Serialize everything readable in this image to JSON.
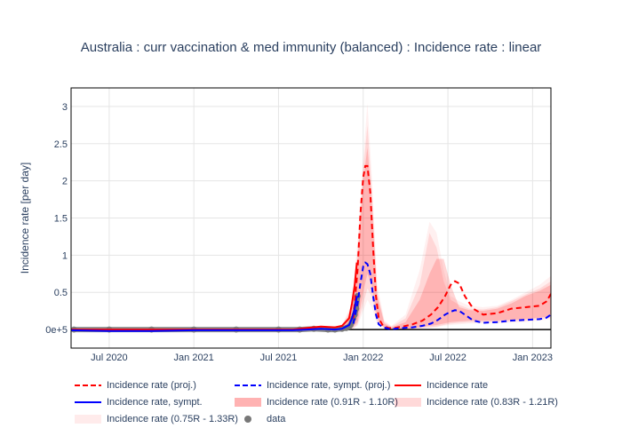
{
  "chart_data": {
    "type": "line",
    "title": "Australia : curr vaccination & med immunity (balanced) : Incidence rate : linear",
    "xlabel": "",
    "ylabel": "Incidence rate [per day]",
    "x_unit": "months since 2020-01-01",
    "xlim": [
      3.3,
      37.3
    ],
    "ylim": [
      -0.25,
      3.25
    ],
    "x_ticks": [
      {
        "label": "Jul 2020",
        "x": 6
      },
      {
        "label": "Jan 2021",
        "x": 12
      },
      {
        "label": "Jul 2021",
        "x": 18
      },
      {
        "label": "Jan 2022",
        "x": 24
      },
      {
        "label": "Jul 2022",
        "x": 30
      },
      {
        "label": "Jan 2023",
        "x": 36
      }
    ],
    "y_ticks": [
      {
        "label": "0e+5",
        "y": 0
      },
      {
        "label": "0.5",
        "y": 0.5
      },
      {
        "label": "1",
        "y": 1
      },
      {
        "label": "1.5",
        "y": 1.5
      },
      {
        "label": "2",
        "y": 2
      },
      {
        "label": "2.5",
        "y": 2.5
      },
      {
        "label": "3",
        "y": 3
      }
    ],
    "series": [
      {
        "name": "Incidence rate (0.75R - 1.33R)",
        "kind": "band",
        "color": "#ff0000",
        "opacity": 0.06,
        "x": [
          21.5,
          22.5,
          23.2,
          23.6,
          24.0,
          24.3,
          24.6,
          25.0,
          25.5,
          26,
          27,
          28,
          28.7,
          29.2,
          29.7,
          30.2,
          30.8,
          31.5,
          32.5,
          33.5,
          34.5,
          35.5,
          36.5,
          37.3
        ],
        "upper": [
          0.03,
          0.06,
          0.35,
          1.2,
          2.3,
          3.05,
          2.1,
          0.6,
          0.12,
          0.05,
          0.2,
          0.8,
          1.45,
          1.3,
          0.8,
          0.45,
          0.38,
          0.32,
          0.3,
          0.32,
          0.4,
          0.5,
          0.6,
          0.72
        ],
        "lower": [
          0,
          0,
          0,
          0.05,
          0.25,
          0.4,
          0.3,
          0.08,
          0.01,
          0,
          0,
          0.01,
          0.02,
          0.03,
          0.05,
          0.06,
          0.07,
          0.08,
          0.08,
          0.08,
          0.09,
          0.1,
          0.12,
          0.14
        ]
      },
      {
        "name": "Incidence rate (0.83R - 1.21R)",
        "kind": "band",
        "color": "#ff0000",
        "opacity": 0.1,
        "x": [
          21.5,
          22.5,
          23.2,
          23.6,
          24.0,
          24.3,
          24.6,
          25.0,
          25.5,
          26,
          27,
          28,
          28.7,
          29.2,
          29.7,
          30.2,
          30.8,
          31.5,
          32.5,
          33.5,
          34.5,
          35.5,
          36.5,
          37.3
        ],
        "upper": [
          0.02,
          0.05,
          0.3,
          1.05,
          2.15,
          2.75,
          1.9,
          0.5,
          0.1,
          0.04,
          0.15,
          0.6,
          1.3,
          1.1,
          0.65,
          0.4,
          0.33,
          0.28,
          0.27,
          0.3,
          0.38,
          0.47,
          0.55,
          0.65
        ],
        "lower": [
          0,
          0,
          0,
          0.07,
          0.35,
          0.55,
          0.45,
          0.1,
          0.02,
          0,
          0,
          0.02,
          0.03,
          0.04,
          0.06,
          0.08,
          0.09,
          0.1,
          0.1,
          0.1,
          0.11,
          0.12,
          0.14,
          0.16
        ]
      },
      {
        "name": "Incidence rate (0.91R - 1.10R)",
        "kind": "band",
        "color": "#ff0000",
        "opacity": 0.16,
        "x": [
          21.5,
          22.5,
          23.2,
          23.6,
          24.0,
          24.3,
          24.6,
          25.0,
          25.5,
          26,
          27,
          28,
          28.7,
          29.2,
          29.7,
          30.2,
          30.8,
          31.5,
          32.5,
          33.5,
          34.5,
          35.5,
          36.5,
          37.3
        ],
        "upper": [
          0.02,
          0.04,
          0.25,
          0.95,
          2.0,
          2.45,
          1.75,
          0.45,
          0.08,
          0.03,
          0.1,
          0.4,
          0.75,
          0.95,
          0.95,
          0.6,
          0.3,
          0.26,
          0.25,
          0.28,
          0.35,
          0.45,
          0.52,
          0.6
        ],
        "lower": [
          0,
          0,
          0.02,
          0.1,
          0.5,
          0.75,
          0.6,
          0.15,
          0.02,
          0,
          0.01,
          0.03,
          0.05,
          0.06,
          0.08,
          0.1,
          0.11,
          0.12,
          0.12,
          0.12,
          0.13,
          0.14,
          0.16,
          0.18
        ]
      },
      {
        "name": "Incidence rate (proj.)",
        "kind": "line",
        "color": "#ff0000",
        "dash": true,
        "x": [
          23.3,
          23.6,
          23.8,
          24.0,
          24.15,
          24.3,
          24.5,
          24.7,
          24.9,
          25.1,
          25.4,
          25.8,
          26.2,
          26.8,
          27.5,
          28.2,
          28.8,
          29.3,
          29.8,
          30.2,
          30.5,
          30.8,
          31.2,
          31.8,
          32.5,
          33.5,
          34.5,
          35.5,
          36.5,
          37.0,
          37.3
        ],
        "y": [
          0.15,
          0.8,
          1.55,
          2.05,
          2.2,
          2.2,
          1.85,
          1.1,
          0.45,
          0.15,
          0.05,
          0.02,
          0.02,
          0.04,
          0.07,
          0.12,
          0.2,
          0.3,
          0.45,
          0.6,
          0.65,
          0.62,
          0.45,
          0.28,
          0.2,
          0.22,
          0.28,
          0.3,
          0.32,
          0.38,
          0.48
        ]
      },
      {
        "name": "Incidence rate, sympt. (proj.)",
        "kind": "line",
        "color": "#0000ff",
        "dash": true,
        "x": [
          23.3,
          23.6,
          23.8,
          24.0,
          24.15,
          24.3,
          24.5,
          24.7,
          24.9,
          25.1,
          25.4,
          25.8,
          26.2,
          26.8,
          27.5,
          28.2,
          28.8,
          29.3,
          29.8,
          30.2,
          30.5,
          30.8,
          31.2,
          31.8,
          32.5,
          33.5,
          34.5,
          35.5,
          36.5,
          37.0,
          37.3
        ],
        "y": [
          0.08,
          0.35,
          0.62,
          0.85,
          0.9,
          0.88,
          0.75,
          0.45,
          0.2,
          0.07,
          0.03,
          0.01,
          0.01,
          0.02,
          0.03,
          0.05,
          0.08,
          0.13,
          0.2,
          0.24,
          0.26,
          0.25,
          0.2,
          0.12,
          0.09,
          0.1,
          0.12,
          0.13,
          0.14,
          0.16,
          0.2
        ]
      },
      {
        "name": "Incidence rate",
        "kind": "line",
        "color": "#ff0000",
        "dash": false,
        "x": [
          3.3,
          6,
          9,
          12,
          15,
          17,
          19,
          20,
          21,
          22,
          22.5,
          23.0,
          23.2,
          23.4,
          23.55
        ],
        "y": [
          0.0,
          0.0,
          0.0,
          0.0,
          0.0,
          0.0,
          0.0,
          0.02,
          0.04,
          0.03,
          0.05,
          0.15,
          0.35,
          0.6,
          0.9
        ]
      },
      {
        "name": "Incidence rate, sympt.",
        "kind": "line",
        "color": "#0000ff",
        "dash": false,
        "x": [
          3.3,
          6,
          9,
          12,
          15,
          17,
          19,
          20,
          21,
          22,
          22.5,
          23.0,
          23.2,
          23.4,
          23.55
        ],
        "y": [
          -0.01,
          -0.02,
          -0.02,
          -0.01,
          -0.01,
          -0.01,
          -0.01,
          0.0,
          0.01,
          0.0,
          0.01,
          0.06,
          0.15,
          0.28,
          0.45
        ]
      },
      {
        "name": "data",
        "kind": "scatter",
        "color": "#777777",
        "x": [
          3.5,
          6,
          9,
          12,
          15,
          18,
          19.5,
          20.5,
          21.5,
          22,
          22.5,
          22.8,
          23.0,
          23.1,
          23.2,
          23.3,
          23.4,
          23.5,
          23.6
        ],
        "y": [
          0.0,
          0.0,
          0.0,
          0.0,
          0.0,
          0.0,
          0.0,
          0.01,
          0.0,
          0.0,
          0.01,
          0.02,
          0.04,
          0.06,
          0.1,
          0.15,
          0.2,
          0.28,
          0.45
        ]
      }
    ]
  }
}
